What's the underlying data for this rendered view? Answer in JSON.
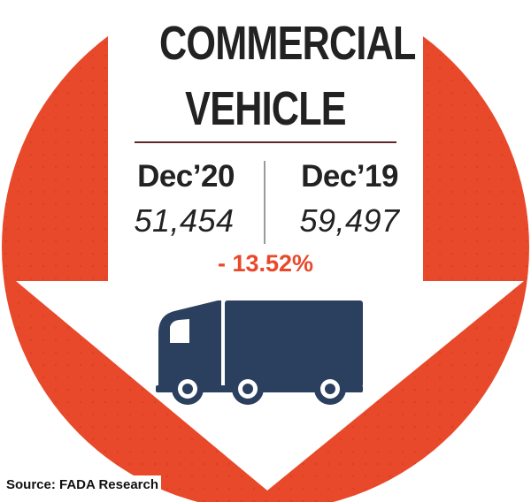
{
  "title": {
    "line1": "COMMERCIAL",
    "line2": "VEHICLE"
  },
  "comparison": {
    "left": {
      "period": "Dec’20",
      "value": "51,454"
    },
    "right": {
      "period": "Dec’19",
      "value": "59,497"
    },
    "change": "- 13.52%"
  },
  "source": "Source: FADA Research",
  "icons": {
    "down_arrow": "down-arrow-icon",
    "truck": "truck-icon"
  },
  "colors": {
    "background_circle": "#e8492a",
    "arrow": "#ffffff",
    "truck": "#2b3f5e",
    "change_text": "#e8492a",
    "text": "#222222"
  }
}
